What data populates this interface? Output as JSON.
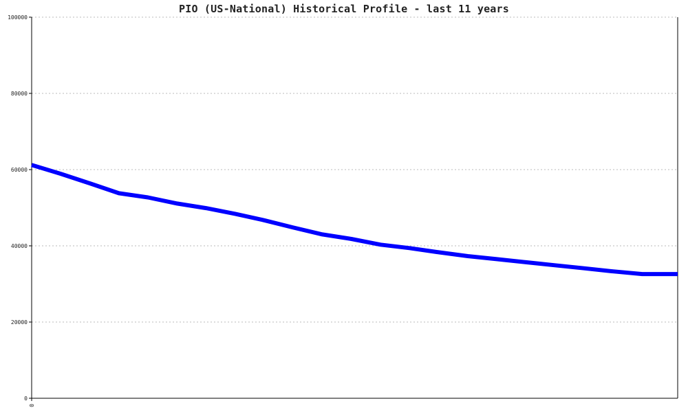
{
  "chart_data": {
    "type": "line",
    "title": "PIO (US-National) Historical Profile - last 11 years",
    "xlabel": "",
    "ylabel": "",
    "ylim": [
      0,
      100000
    ],
    "yticks": [
      0,
      20000,
      40000,
      60000,
      80000,
      100000
    ],
    "ytick_labels": [
      "0",
      "20000",
      "40000",
      "60000",
      "80000",
      "100000"
    ],
    "xtick_labels": [
      "0"
    ],
    "grid": true,
    "legend": "none",
    "line_color": "#0000ff",
    "x": [
      0,
      0.045,
      0.09,
      0.135,
      0.18,
      0.225,
      0.27,
      0.315,
      0.36,
      0.405,
      0.45,
      0.495,
      0.54,
      0.585,
      0.63,
      0.675,
      0.72,
      0.765,
      0.81,
      0.855,
      0.9,
      0.945,
      1.0
    ],
    "values": [
      61200,
      58900,
      56400,
      53800,
      52700,
      51100,
      49900,
      48400,
      46700,
      44800,
      43000,
      41800,
      40300,
      39400,
      38300,
      37300,
      36500,
      35700,
      34900,
      34100,
      33300,
      32600,
      32600
    ]
  }
}
